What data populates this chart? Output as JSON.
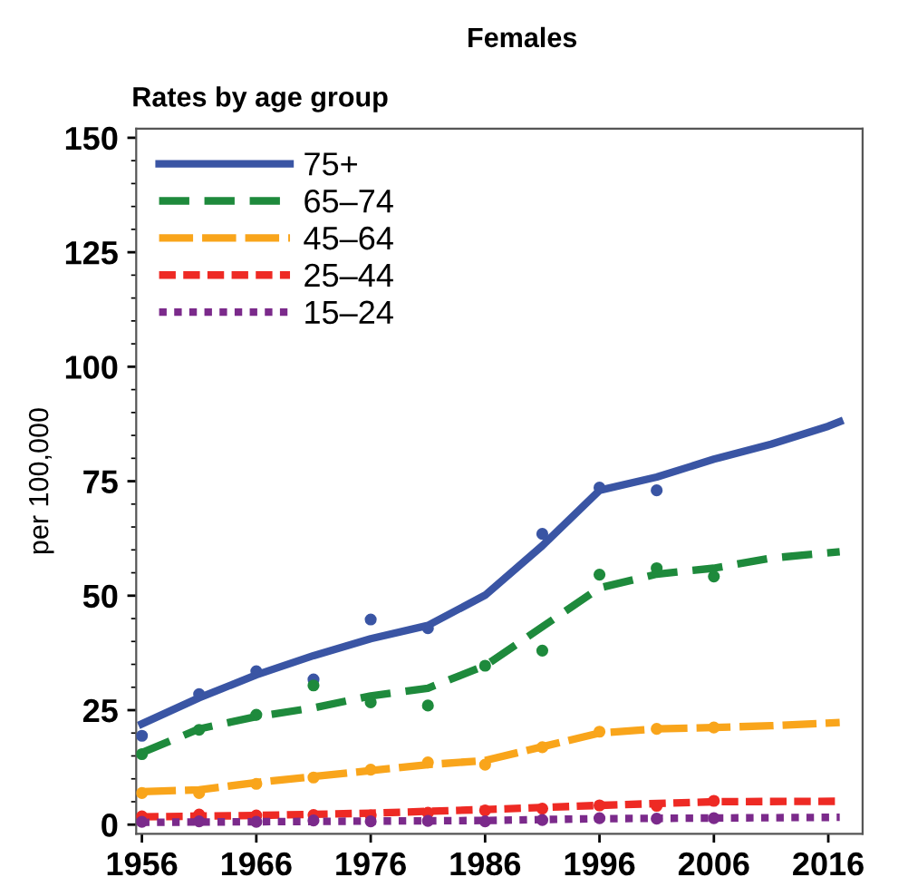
{
  "chart_data": {
    "type": "line",
    "title": "Females",
    "subtitle": "Rates by age group",
    "ylabel": "per 100,000",
    "xlim": [
      1955.5,
      2019
    ],
    "xticks": [
      1956,
      1966,
      1976,
      1986,
      1996,
      2006,
      2016
    ],
    "ylim": [
      -2,
      152
    ],
    "yticks": [
      0,
      25,
      50,
      75,
      100,
      125,
      150
    ],
    "grid": false,
    "legend": "top left",
    "marker": "none",
    "series": [
      {
        "name": "75+",
        "line_style": "solid",
        "color": "#3a55a4",
        "x": [
          1956,
          1961,
          1966,
          1971,
          1976,
          1981,
          1986,
          1991,
          1996,
          2001,
          2006,
          2011,
          2016,
          2017
        ],
        "values": [
          22,
          27.7,
          32.7,
          36.9,
          40.6,
          43.5,
          50.1,
          60.9,
          73,
          75.9,
          79.8,
          83.1,
          87,
          88
        ]
      },
      {
        "name": "65–74",
        "line_style": "dashed",
        "color": "#1e8a3c",
        "x": [
          1956,
          1961,
          1966,
          1971,
          1976,
          1981,
          1986,
          1991,
          1996,
          2001,
          2006,
          2011,
          2017
        ],
        "values": [
          15.7,
          20.9,
          23.6,
          25.5,
          28.1,
          29.8,
          34.7,
          43.2,
          51.7,
          54.7,
          56,
          58.2,
          59.6
        ]
      },
      {
        "name": "45–64",
        "line_style": "longdash",
        "color": "#f9a51b",
        "x": [
          1956,
          1961,
          1966,
          1971,
          1976,
          1981,
          1986,
          1991,
          1996,
          2001,
          2006,
          2011,
          2017
        ],
        "values": [
          7.2,
          7.6,
          9.2,
          10.5,
          11.8,
          13.1,
          14,
          17,
          20,
          20.9,
          21.2,
          21.6,
          22.3
        ]
      },
      {
        "name": "25–44",
        "line_style": "shortdash",
        "color": "#ee2a24",
        "x": [
          1956,
          1966,
          1976,
          1986,
          1996,
          2006,
          2017
        ],
        "values": [
          1.7,
          2.0,
          2.5,
          3.3,
          4.2,
          5.0,
          5.1
        ]
      },
      {
        "name": "15–24",
        "line_style": "dotted",
        "color": "#7b2a8b",
        "x": [
          1956,
          1986,
          1996,
          2017
        ],
        "values": [
          0.5,
          0.9,
          1.3,
          1.6
        ]
      },
      {
        "type": "scatter",
        "marker": "circle",
        "color": "#3a55a4",
        "x": [
          1956,
          1961,
          1966,
          1971,
          1976,
          1981,
          1991,
          1996,
          2001
        ],
        "values": [
          19.4,
          28.5,
          33.5,
          31.7,
          44.8,
          42.9,
          63.5,
          73.6,
          73
        ]
      },
      {
        "type": "scatter",
        "marker": "circle",
        "color": "#1e8a3c",
        "x": [
          1956,
          1961,
          1966,
          1971,
          1976,
          1981,
          1986,
          1991,
          1996,
          2001,
          2006
        ],
        "values": [
          15.4,
          20.7,
          24,
          30.4,
          26.7,
          26,
          34.7,
          38,
          54.6,
          56,
          54.2
        ]
      },
      {
        "type": "scatter",
        "marker": "circle",
        "color": "#f9a51b",
        "x": [
          1956,
          1961,
          1966,
          1971,
          1976,
          1981,
          1986,
          1991,
          1996,
          2001,
          2006
        ],
        "values": [
          6.9,
          6.9,
          8.9,
          10.3,
          12,
          13.6,
          13.1,
          16.9,
          20.3,
          20.9,
          21.2
        ]
      },
      {
        "type": "scatter",
        "marker": "circle",
        "color": "#ee2a24",
        "x": [
          1956,
          1961,
          1966,
          1971,
          1976,
          1981,
          1986,
          1991,
          1996,
          2001,
          2006
        ],
        "values": [
          1.8,
          2.2,
          2,
          2.1,
          2,
          2.6,
          3.1,
          3.5,
          4.2,
          4.1,
          5.2
        ]
      },
      {
        "type": "scatter",
        "marker": "circle",
        "color": "#7b2a8b",
        "x": [
          1956,
          1961,
          1966,
          1971,
          1976,
          1981,
          1986,
          1991,
          1996,
          2001,
          2006
        ],
        "values": [
          0.6,
          0.7,
          0.6,
          0.9,
          0.7,
          0.8,
          0.7,
          1.0,
          1.4,
          1.3,
          1.4
        ]
      }
    ]
  }
}
